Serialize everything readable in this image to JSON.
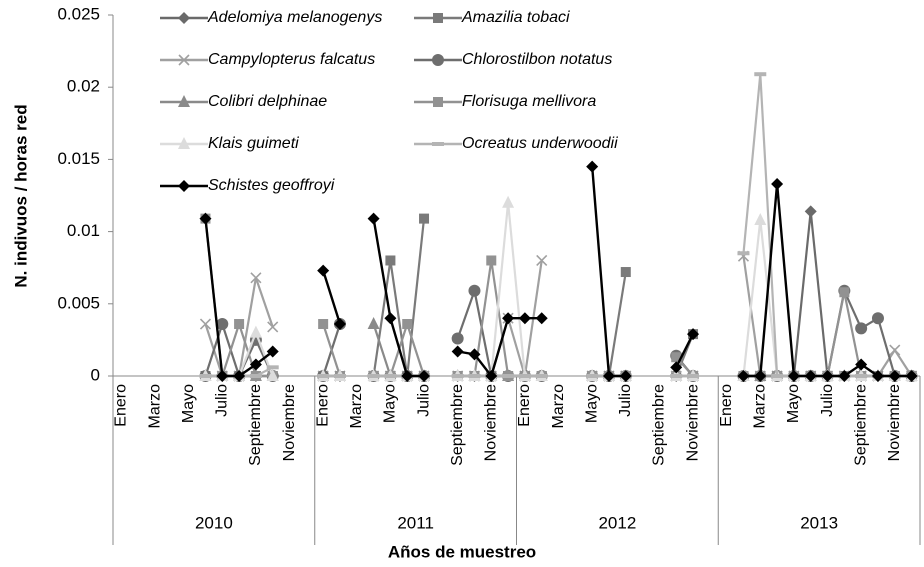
{
  "chart_data": {
    "type": "line",
    "y_label": "N. indivuos / horas red",
    "x_label": "Años de muestreo",
    "ylim": [
      0,
      0.025
    ],
    "yticks": [
      0,
      0.005,
      0.01,
      0.015,
      0.02,
      0.025
    ],
    "grid": false,
    "legend": "top-left",
    "categories": [
      "Enero",
      null,
      "Marzo",
      null,
      "Mayo",
      null,
      "Julio",
      null,
      "Septiembre",
      null,
      "Noviembre",
      null,
      "Enero",
      null,
      "Marzo",
      null,
      "Mayo",
      null,
      "Julio",
      null,
      "Septiembre",
      null,
      "Noviembre",
      null,
      "Enero",
      null,
      "Marzo",
      null,
      "Mayo",
      null,
      "Julio",
      null,
      "Septiembre",
      null,
      "Noviembre",
      null,
      "Enero",
      null,
      "Marzo",
      null,
      "Mayo",
      null,
      "Julio",
      null,
      "Septiembre",
      null,
      "Noviembre",
      null
    ],
    "groups": [
      "2010",
      "2011",
      "2012",
      "2013"
    ],
    "series": [
      {
        "name": "Adelomiya melanogenys",
        "color": "#6a6a6a",
        "marker": "diamond",
        "values": [
          null,
          null,
          null,
          null,
          null,
          0,
          0,
          0,
          0,
          0,
          null,
          null,
          0,
          0,
          null,
          0,
          0,
          0,
          0,
          null,
          0,
          0,
          0,
          0,
          0,
          0,
          null,
          null,
          0,
          0,
          0,
          null,
          null,
          0,
          0,
          null,
          null,
          0,
          0,
          0,
          0,
          0.0114,
          0,
          0,
          0,
          0,
          0,
          0
        ]
      },
      {
        "name": "Amazilia tobaci",
        "color": "#7a7a7a",
        "marker": "square",
        "values": [
          null,
          null,
          null,
          null,
          null,
          0,
          0,
          0,
          0,
          0,
          null,
          null,
          0,
          0,
          null,
          0,
          0.008,
          0,
          0.0109,
          null,
          0,
          0,
          0,
          0,
          0,
          0,
          null,
          null,
          0,
          0,
          0.0072,
          null,
          null,
          0,
          0.0029,
          null,
          null,
          0,
          0,
          0,
          0,
          0,
          0,
          0,
          0,
          0,
          0,
          0
        ]
      },
      {
        "name": "Campylopterus falcatus",
        "color": "#a0a0a0",
        "marker": "x",
        "values": [
          null,
          null,
          null,
          null,
          null,
          0.0036,
          0,
          0,
          0.0068,
          0.0034,
          null,
          null,
          0,
          0,
          null,
          0,
          0,
          0,
          0,
          null,
          0,
          0,
          0,
          0.004,
          0,
          0.008,
          null,
          null,
          0,
          0,
          0,
          null,
          null,
          0,
          0,
          null,
          null,
          0.0083,
          0,
          0,
          0,
          0,
          0,
          0,
          0,
          0,
          0.0018,
          0
        ]
      },
      {
        "name": "Chlorostilbon notatus",
        "color": "#6e6e6e",
        "marker": "circle",
        "values": [
          null,
          null,
          null,
          null,
          null,
          0,
          0.0036,
          0,
          0.0025,
          0,
          null,
          null,
          0,
          0.0036,
          null,
          0,
          0,
          0,
          0,
          null,
          0.0026,
          0.0059,
          0,
          0,
          0,
          0,
          null,
          null,
          0,
          0,
          0,
          null,
          null,
          0.0014,
          0,
          null,
          null,
          0,
          0,
          0,
          0,
          0,
          0,
          0.0059,
          0.0033,
          0.004,
          0,
          0
        ]
      },
      {
        "name": "Colibri delphinae",
        "color": "#8a8a8a",
        "marker": "triangle",
        "values": [
          null,
          null,
          null,
          null,
          null,
          0,
          0,
          0,
          0,
          0,
          null,
          null,
          0,
          0,
          null,
          0.0036,
          0,
          0,
          0,
          null,
          0,
          0,
          0,
          0,
          0,
          0,
          null,
          null,
          0,
          0,
          0,
          null,
          null,
          0,
          0,
          null,
          null,
          0,
          0,
          0,
          0,
          0,
          0,
          0,
          0,
          0,
          0,
          0
        ]
      },
      {
        "name": "Florisuga mellivora",
        "color": "#929292",
        "marker": "square",
        "values": [
          null,
          null,
          null,
          null,
          null,
          0.0109,
          0,
          0.0036,
          0,
          0,
          null,
          null,
          0.0036,
          0,
          null,
          0,
          0,
          0.0036,
          0,
          null,
          0,
          0,
          0.008,
          0,
          0,
          0,
          null,
          null,
          0,
          0,
          0,
          null,
          null,
          0.0013,
          0,
          null,
          null,
          0,
          0,
          0,
          0,
          0,
          0,
          0.0058,
          0,
          0,
          0,
          0
        ]
      },
      {
        "name": "Klais guimeti",
        "color": "#dcdcdc",
        "marker": "triangle",
        "values": [
          null,
          null,
          null,
          null,
          null,
          0,
          0,
          0,
          0.003,
          0,
          null,
          null,
          0,
          0,
          null,
          0,
          0,
          0,
          0,
          null,
          0,
          0,
          0,
          0.012,
          0,
          0,
          null,
          null,
          0,
          0,
          0,
          null,
          null,
          0,
          0,
          null,
          null,
          0,
          0.0108,
          0,
          0,
          0,
          0,
          0,
          0,
          0,
          0,
          0
        ]
      },
      {
        "name": "Ocreatus underwoodii",
        "color": "#b4b4b4",
        "marker": "dash",
        "values": [
          null,
          null,
          null,
          null,
          null,
          0,
          0,
          0,
          0,
          0.0006,
          null,
          null,
          0,
          0,
          null,
          0,
          0,
          0,
          0,
          null,
          0,
          0,
          0,
          0,
          0,
          0,
          null,
          null,
          0,
          0,
          0,
          null,
          null,
          0,
          0,
          null,
          null,
          0.0085,
          0.0209,
          0,
          0,
          0,
          0,
          0,
          0,
          0,
          0,
          0
        ]
      },
      {
        "name": "Schistes geoffroyi",
        "color": "#000000",
        "marker": "diamond",
        "values": [
          null,
          null,
          null,
          null,
          null,
          0.0109,
          0,
          0,
          0.0008,
          0.0017,
          null,
          null,
          0.0073,
          0.0036,
          null,
          0.0109,
          0.004,
          0,
          0,
          null,
          0.0017,
          0.0015,
          0,
          0.004,
          0.004,
          0.004,
          null,
          null,
          0.0145,
          0,
          0,
          null,
          null,
          0.0006,
          0.0029,
          null,
          null,
          0,
          0,
          0.0133,
          0,
          0,
          0,
          0,
          0.0008,
          0,
          0,
          0
        ]
      }
    ]
  }
}
